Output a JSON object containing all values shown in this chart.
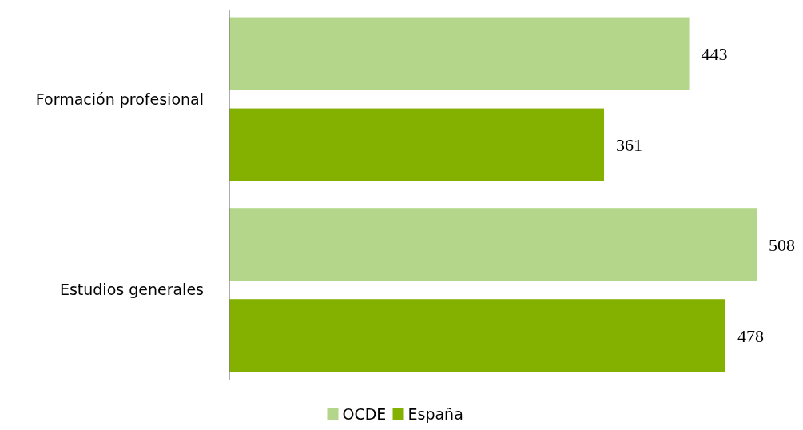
{
  "chart_data": {
    "type": "bar",
    "orientation": "horizontal",
    "categories": [
      "Formación profesional",
      "Estudios generales"
    ],
    "series": [
      {
        "name": "OCDE",
        "color": "#b3d68a",
        "values": [
          443,
          508
        ]
      },
      {
        "name": "España",
        "color": "#84b000",
        "values": [
          361,
          478
        ]
      }
    ],
    "data_labels": true,
    "legend": "bottom",
    "grid": false
  }
}
